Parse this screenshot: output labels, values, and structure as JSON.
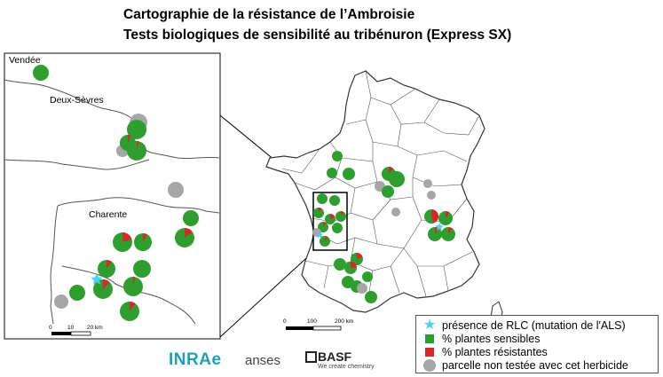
{
  "header": {
    "title_line1": "Cartographie de la résistance de l’Ambroisie",
    "title_line2": "Tests biologiques de sensibilité au tribénuron (Express SX)"
  },
  "inset": {
    "region_labels": [
      "Vendée",
      "Deux-Sèvres",
      "Charente"
    ],
    "scale_ticks": [
      "0",
      "10",
      "20 km"
    ]
  },
  "main_map": {
    "scale_ticks": [
      "0",
      "100",
      "200 km"
    ]
  },
  "legend": {
    "items": [
      {
        "symbol": "star",
        "label": "présence de RLC (mutation de l'ALS)",
        "color": "#48d1f0"
      },
      {
        "symbol": "green-square",
        "label": "% plantes sensibles",
        "color": "#2e9e2e"
      },
      {
        "symbol": "red-square",
        "label": "% plantes résistantes",
        "color": "#d42a2a"
      },
      {
        "symbol": "grey-circle",
        "label": "parcelle non testée avec cet herbicide",
        "color": "#a6a6a6"
      }
    ]
  },
  "logos": {
    "inrae": "INRAe",
    "anses": "anses",
    "basf": "BASF",
    "basf_tagline": "We create chemistry"
  },
  "colors": {
    "sensitive": "#2e9e2e",
    "resistant": "#d42a2a",
    "untested": "#a6a6a6",
    "rlc_star": "#48d1f0"
  }
}
